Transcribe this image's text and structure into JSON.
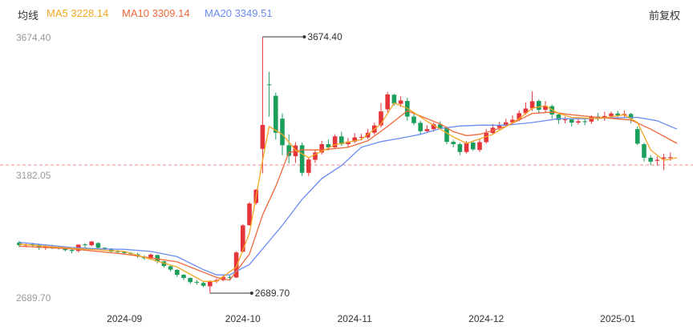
{
  "header": {
    "title": "均线",
    "ma5": "MA5 3228.14",
    "ma10": "MA10 3309.14",
    "ma20": "MA20 3349.51",
    "adjust": "前复权"
  },
  "colors": {
    "up": "#e6353a",
    "down": "#1b9e5c",
    "ma5": "#f5a623",
    "ma10": "#f0683a",
    "ma20": "#6b8cf5",
    "ref_line": "#f08a8a"
  },
  "chart_data": {
    "type": "candlestick",
    "y_ticks": [
      "3674.40",
      "3182.05",
      "2689.70"
    ],
    "ylim": [
      2689.7,
      3674.4
    ],
    "reference_line": 3182.05,
    "x_ticks": [
      {
        "label": "2024-09",
        "index": 16
      },
      {
        "label": "2024-10",
        "index": 34
      },
      {
        "label": "2024-11",
        "index": 51
      },
      {
        "label": "2024-12",
        "index": 71
      },
      {
        "label": "2025-01",
        "index": 91
      }
    ],
    "annotations": [
      {
        "label": "3674.40",
        "index": 37,
        "value": 3674.4
      },
      {
        "label": "2689.70",
        "index": 29,
        "value": 2689.7
      }
    ],
    "candles": [
      [
        2884,
        2874,
        2890,
        2866
      ],
      [
        2873,
        2877,
        2881,
        2866
      ],
      [
        2878,
        2874,
        2883,
        2866
      ],
      [
        2875,
        2864,
        2880,
        2856
      ],
      [
        2866,
        2870,
        2873,
        2856
      ],
      [
        2870,
        2866,
        2876,
        2859
      ],
      [
        2866,
        2864,
        2871,
        2857
      ],
      [
        2864,
        2855,
        2868,
        2850
      ],
      [
        2856,
        2852,
        2860,
        2843
      ],
      [
        2852,
        2876,
        2878,
        2846
      ],
      [
        2877,
        2874,
        2882,
        2862
      ],
      [
        2874,
        2888,
        2890,
        2869
      ],
      [
        2882,
        2864,
        2885,
        2858
      ],
      [
        2864,
        2859,
        2866,
        2852
      ],
      [
        2859,
        2850,
        2863,
        2845
      ],
      [
        2851,
        2848,
        2856,
        2843
      ],
      [
        2848,
        2844,
        2852,
        2838
      ],
      [
        2844,
        2840,
        2847,
        2834
      ],
      [
        2839,
        2832,
        2844,
        2825
      ],
      [
        2830,
        2824,
        2835,
        2818
      ],
      [
        2825,
        2838,
        2842,
        2818
      ],
      [
        2836,
        2812,
        2838,
        2804
      ],
      [
        2812,
        2794,
        2814,
        2788
      ],
      [
        2793,
        2780,
        2796,
        2773
      ],
      [
        2779,
        2760,
        2782,
        2752
      ],
      [
        2760,
        2748,
        2763,
        2740
      ],
      [
        2748,
        2732,
        2750,
        2725
      ],
      [
        2733,
        2730,
        2740,
        2722
      ],
      [
        2729,
        2718,
        2733,
        2712
      ],
      [
        2716,
        2736,
        2739,
        2690
      ],
      [
        2735,
        2740,
        2746,
        2728
      ],
      [
        2740,
        2752,
        2757,
        2735
      ],
      [
        2752,
        2750,
        2760,
        2742
      ],
      [
        2750,
        2846,
        2850,
        2748
      ],
      [
        2849,
        2950,
        2955,
        2846
      ],
      [
        2951,
        3034,
        3040,
        2948
      ],
      [
        3036,
        3087,
        3090,
        3030
      ],
      [
        3244,
        3336,
        3674,
        3150
      ],
      [
        3492,
        3489,
        3540,
        3368
      ],
      [
        3448,
        3306,
        3460,
        3280
      ],
      [
        3360,
        3258,
        3380,
        3220
      ],
      [
        3258,
        3217,
        3300,
        3188
      ],
      [
        3216,
        3257,
        3270,
        3190
      ],
      [
        3258,
        3152,
        3268,
        3140
      ],
      [
        3152,
        3203,
        3210,
        3140
      ],
      [
        3202,
        3230,
        3240,
        3190
      ],
      [
        3230,
        3262,
        3275,
        3222
      ],
      [
        3262,
        3250,
        3280,
        3238
      ],
      [
        3250,
        3292,
        3300,
        3245
      ],
      [
        3292,
        3262,
        3310,
        3255
      ],
      [
        3262,
        3272,
        3285,
        3250
      ],
      [
        3272,
        3288,
        3305,
        3266
      ],
      [
        3287,
        3290,
        3302,
        3276
      ],
      [
        3288,
        3306,
        3321,
        3282
      ],
      [
        3306,
        3334,
        3345,
        3298
      ],
      [
        3334,
        3388,
        3420,
        3326
      ],
      [
        3396,
        3453,
        3463,
        3385
      ],
      [
        3452,
        3418,
        3455,
        3410
      ],
      [
        3417,
        3430,
        3446,
        3405
      ],
      [
        3428,
        3368,
        3440,
        3352
      ],
      [
        3368,
        3343,
        3378,
        3335
      ],
      [
        3344,
        3312,
        3352,
        3300
      ],
      [
        3312,
        3320,
        3335,
        3305
      ],
      [
        3320,
        3339,
        3345,
        3310
      ],
      [
        3338,
        3324,
        3350,
        3318
      ],
      [
        3324,
        3271,
        3330,
        3262
      ],
      [
        3271,
        3262,
        3278,
        3250
      ],
      [
        3262,
        3232,
        3268,
        3220
      ],
      [
        3232,
        3268,
        3274,
        3226
      ],
      [
        3268,
        3242,
        3276,
        3236
      ],
      [
        3240,
        3270,
        3284,
        3232
      ],
      [
        3270,
        3305,
        3320,
        3264
      ],
      [
        3305,
        3325,
        3340,
        3300
      ],
      [
        3325,
        3335,
        3348,
        3318
      ],
      [
        3335,
        3346,
        3360,
        3330
      ],
      [
        3346,
        3356,
        3372,
        3340
      ],
      [
        3356,
        3381,
        3392,
        3350
      ],
      [
        3381,
        3399,
        3422,
        3375
      ],
      [
        3400,
        3427,
        3465,
        3390
      ],
      [
        3428,
        3394,
        3434,
        3380
      ],
      [
        3394,
        3409,
        3428,
        3384
      ],
      [
        3408,
        3376,
        3414,
        3360
      ],
      [
        3376,
        3355,
        3380,
        3340
      ],
      [
        3355,
        3357,
        3368,
        3342
      ],
      [
        3357,
        3345,
        3362,
        3330
      ],
      [
        3345,
        3350,
        3360,
        3338
      ],
      [
        3350,
        3349,
        3362,
        3335
      ],
      [
        3349,
        3368,
        3373,
        3340
      ],
      [
        3368,
        3361,
        3382,
        3352
      ],
      [
        3361,
        3370,
        3386,
        3352
      ],
      [
        3370,
        3380,
        3388,
        3362
      ],
      [
        3380,
        3373,
        3390,
        3362
      ],
      [
        3373,
        3378,
        3392,
        3365
      ],
      [
        3378,
        3360,
        3382,
        3342
      ],
      [
        3320,
        3264,
        3330,
        3258
      ],
      [
        3262,
        3210,
        3268,
        3195
      ],
      [
        3210,
        3195,
        3220,
        3182
      ],
      [
        3198,
        3202,
        3215,
        3180
      ],
      [
        3206,
        3211,
        3225,
        3162
      ],
      [
        3211,
        3212,
        3230,
        3198
      ]
    ],
    "ma5": [
      [
        0,
        2878
      ],
      [
        8,
        2862
      ],
      [
        16,
        2850
      ],
      [
        24,
        2790
      ],
      [
        28,
        2735
      ],
      [
        30,
        2735
      ],
      [
        33,
        2790
      ],
      [
        35,
        2920
      ],
      [
        37,
        3200
      ],
      [
        38,
        3330
      ],
      [
        40,
        3300
      ],
      [
        42,
        3240
      ],
      [
        44,
        3210
      ],
      [
        48,
        3260
      ],
      [
        52,
        3280
      ],
      [
        55,
        3340
      ],
      [
        57,
        3420
      ],
      [
        59,
        3400
      ],
      [
        62,
        3350
      ],
      [
        64,
        3320
      ],
      [
        66,
        3290
      ],
      [
        68,
        3265
      ],
      [
        72,
        3300
      ],
      [
        76,
        3360
      ],
      [
        78,
        3400
      ],
      [
        80,
        3410
      ],
      [
        82,
        3380
      ],
      [
        84,
        3365
      ],
      [
        88,
        3360
      ],
      [
        92,
        3375
      ],
      [
        94,
        3345
      ],
      [
        96,
        3240
      ],
      [
        98,
        3200
      ],
      [
        100,
        3210
      ]
    ],
    "ma10": [
      [
        0,
        2870
      ],
      [
        8,
        2860
      ],
      [
        16,
        2840
      ],
      [
        24,
        2810
      ],
      [
        30,
        2750
      ],
      [
        32,
        2740
      ],
      [
        35,
        2840
      ],
      [
        37,
        2990
      ],
      [
        39,
        3100
      ],
      [
        41,
        3230
      ],
      [
        43,
        3240
      ],
      [
        46,
        3240
      ],
      [
        50,
        3250
      ],
      [
        53,
        3275
      ],
      [
        56,
        3330
      ],
      [
        59,
        3390
      ],
      [
        61,
        3370
      ],
      [
        64,
        3340
      ],
      [
        66,
        3310
      ],
      [
        68,
        3295
      ],
      [
        70,
        3300
      ],
      [
        74,
        3330
      ],
      [
        78,
        3380
      ],
      [
        81,
        3385
      ],
      [
        84,
        3375
      ],
      [
        88,
        3365
      ],
      [
        93,
        3355
      ],
      [
        96,
        3320
      ],
      [
        100,
        3265
      ]
    ],
    "ma20": [
      [
        0,
        2885
      ],
      [
        4,
        2875
      ],
      [
        8,
        2865
      ],
      [
        12,
        2860
      ],
      [
        16,
        2858
      ],
      [
        20,
        2850
      ],
      [
        24,
        2830
      ],
      [
        28,
        2780
      ],
      [
        30,
        2760
      ],
      [
        32,
        2760
      ],
      [
        35,
        2800
      ],
      [
        40,
        2950
      ],
      [
        43,
        3050
      ],
      [
        46,
        3130
      ],
      [
        49,
        3180
      ],
      [
        52,
        3250
      ],
      [
        55,
        3272
      ],
      [
        58,
        3285
      ],
      [
        61,
        3300
      ],
      [
        64,
        3322
      ],
      [
        67,
        3332
      ],
      [
        70,
        3335
      ],
      [
        74,
        3335
      ],
      [
        78,
        3345
      ],
      [
        82,
        3360
      ],
      [
        86,
        3360
      ],
      [
        90,
        3363
      ],
      [
        94,
        3365
      ],
      [
        97,
        3352
      ],
      [
        100,
        3320
      ]
    ]
  }
}
